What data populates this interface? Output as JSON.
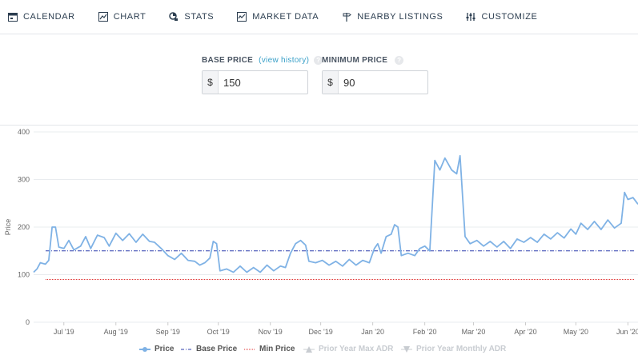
{
  "nav": {
    "items": [
      {
        "label": "CALENDAR",
        "icon": "calendar-icon"
      },
      {
        "label": "CHART",
        "icon": "chart-icon"
      },
      {
        "label": "STATS",
        "icon": "stats-icon"
      },
      {
        "label": "MARKET DATA",
        "icon": "market-data-icon"
      },
      {
        "label": "NEARBY LISTINGS",
        "icon": "signpost-icon"
      },
      {
        "label": "CUSTOMIZE",
        "icon": "sliders-icon"
      }
    ]
  },
  "pricing": {
    "base_label": "BASE PRICE",
    "view_history": "(view history)",
    "help_glyph": "?",
    "currency": "$",
    "base_value": "150",
    "min_label": "MINIMUM PRICE",
    "min_value": "90"
  },
  "colors": {
    "price": "#7fb2e5",
    "base_price": "#2f3fae",
    "min_price": "#e03131",
    "disabled": "#c8ccd1",
    "grid": "#e9ecef"
  },
  "chart_data": {
    "type": "line",
    "ylabel": "Price",
    "ylim": [
      0,
      400
    ],
    "yticks": [
      0,
      100,
      200,
      300,
      400
    ],
    "xticks": [
      "Jul '19",
      "Aug '19",
      "Sep '19",
      "Oct '19",
      "Nov '19",
      "Dec '19",
      "Jan '20",
      "Feb '20",
      "Mar '20",
      "Apr '20",
      "May '20",
      "Jun '20"
    ],
    "x_range": [
      "2019-06-13",
      "2020-06-07"
    ],
    "legend": [
      "Price",
      "Base Price",
      "Min Price",
      "Prior Year Max ADR",
      "Prior Year Monthly ADR"
    ],
    "series": [
      {
        "name": "Price",
        "points": [
          [
            "2019-06-13",
            105
          ],
          [
            "2019-06-15",
            112
          ],
          [
            "2019-06-17",
            125
          ],
          [
            "2019-06-20",
            122
          ],
          [
            "2019-06-22",
            130
          ],
          [
            "2019-06-24",
            200
          ],
          [
            "2019-06-26",
            200
          ],
          [
            "2019-06-28",
            158
          ],
          [
            "2019-07-01",
            155
          ],
          [
            "2019-07-04",
            172
          ],
          [
            "2019-07-07",
            152
          ],
          [
            "2019-07-11",
            160
          ],
          [
            "2019-07-14",
            180
          ],
          [
            "2019-07-17",
            155
          ],
          [
            "2019-07-21",
            183
          ],
          [
            "2019-07-25",
            178
          ],
          [
            "2019-07-28",
            160
          ],
          [
            "2019-08-01",
            187
          ],
          [
            "2019-08-05",
            172
          ],
          [
            "2019-08-09",
            186
          ],
          [
            "2019-08-13",
            168
          ],
          [
            "2019-08-17",
            185
          ],
          [
            "2019-08-21",
            170
          ],
          [
            "2019-08-24",
            168
          ],
          [
            "2019-08-28",
            155
          ],
          [
            "2019-09-01",
            140
          ],
          [
            "2019-09-05",
            132
          ],
          [
            "2019-09-09",
            145
          ],
          [
            "2019-09-13",
            130
          ],
          [
            "2019-09-17",
            128
          ],
          [
            "2019-09-20",
            120
          ],
          [
            "2019-09-23",
            125
          ],
          [
            "2019-09-26",
            135
          ],
          [
            "2019-09-28",
            170
          ],
          [
            "2019-09-30",
            165
          ],
          [
            "2019-10-02",
            108
          ],
          [
            "2019-10-06",
            112
          ],
          [
            "2019-10-10",
            105
          ],
          [
            "2019-10-14",
            118
          ],
          [
            "2019-10-18",
            105
          ],
          [
            "2019-10-22",
            115
          ],
          [
            "2019-10-26",
            105
          ],
          [
            "2019-10-30",
            120
          ],
          [
            "2019-11-03",
            108
          ],
          [
            "2019-11-07",
            118
          ],
          [
            "2019-11-10",
            115
          ],
          [
            "2019-11-13",
            145
          ],
          [
            "2019-11-16",
            165
          ],
          [
            "2019-11-19",
            172
          ],
          [
            "2019-11-22",
            162
          ],
          [
            "2019-11-24",
            128
          ],
          [
            "2019-11-28",
            125
          ],
          [
            "2019-12-02",
            130
          ],
          [
            "2019-12-06",
            120
          ],
          [
            "2019-12-10",
            128
          ],
          [
            "2019-12-14",
            118
          ],
          [
            "2019-12-18",
            132
          ],
          [
            "2019-12-22",
            120
          ],
          [
            "2019-12-26",
            130
          ],
          [
            "2019-12-30",
            125
          ],
          [
            "2020-01-02",
            155
          ],
          [
            "2020-01-04",
            165
          ],
          [
            "2020-01-06",
            145
          ],
          [
            "2020-01-09",
            180
          ],
          [
            "2020-01-12",
            185
          ],
          [
            "2020-01-14",
            205
          ],
          [
            "2020-01-16",
            200
          ],
          [
            "2020-01-18",
            140
          ],
          [
            "2020-01-22",
            145
          ],
          [
            "2020-01-26",
            140
          ],
          [
            "2020-01-29",
            155
          ],
          [
            "2020-02-01",
            160
          ],
          [
            "2020-02-04",
            150
          ],
          [
            "2020-02-07",
            340
          ],
          [
            "2020-02-10",
            320
          ],
          [
            "2020-02-13",
            345
          ],
          [
            "2020-02-17",
            320
          ],
          [
            "2020-02-20",
            312
          ],
          [
            "2020-02-22",
            350
          ],
          [
            "2020-02-25",
            180
          ],
          [
            "2020-02-28",
            165
          ],
          [
            "2020-03-03",
            172
          ],
          [
            "2020-03-07",
            160
          ],
          [
            "2020-03-11",
            170
          ],
          [
            "2020-03-15",
            158
          ],
          [
            "2020-03-19",
            170
          ],
          [
            "2020-03-23",
            155
          ],
          [
            "2020-03-27",
            175
          ],
          [
            "2020-03-31",
            168
          ],
          [
            "2020-04-04",
            178
          ],
          [
            "2020-04-08",
            168
          ],
          [
            "2020-04-12",
            185
          ],
          [
            "2020-04-16",
            175
          ],
          [
            "2020-04-20",
            188
          ],
          [
            "2020-04-24",
            177
          ],
          [
            "2020-04-28",
            196
          ],
          [
            "2020-05-01",
            185
          ],
          [
            "2020-05-04",
            208
          ],
          [
            "2020-05-08",
            195
          ],
          [
            "2020-05-12",
            212
          ],
          [
            "2020-05-16",
            195
          ],
          [
            "2020-05-20",
            215
          ],
          [
            "2020-05-24",
            198
          ],
          [
            "2020-05-28",
            208
          ],
          [
            "2020-05-30",
            273
          ],
          [
            "2020-06-01",
            258
          ],
          [
            "2020-06-04",
            262
          ],
          [
            "2020-06-07",
            248
          ]
        ]
      },
      {
        "name": "Base Price",
        "value": 150
      },
      {
        "name": "Min Price",
        "value": 90
      }
    ]
  }
}
